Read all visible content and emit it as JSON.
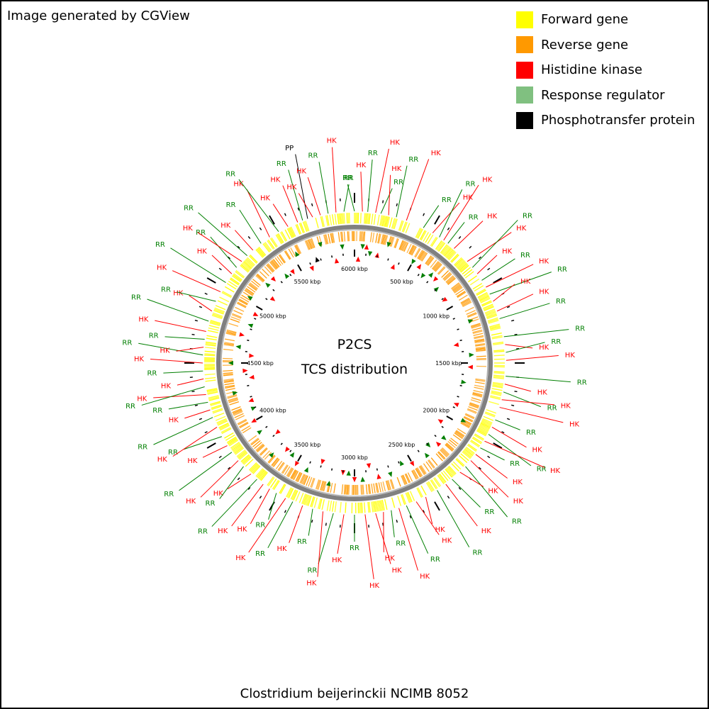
{
  "credit": "Image generated by CGView",
  "organism": "Clostridium beijerinckii NCIMB 8052",
  "center_title": [
    "P2CS",
    "TCS distribution"
  ],
  "legend": [
    {
      "label": "Forward gene",
      "color": "#ffff00"
    },
    {
      "label": "Reverse gene",
      "color": "#ff9900"
    },
    {
      "label": "Histidine kinase",
      "color": "#ff0000"
    },
    {
      "label": "Response regulator",
      "color": "#80c080"
    },
    {
      "label": "Phosphotransfer protein",
      "color": "#000000"
    }
  ],
  "genome_kbp": 6000,
  "ruler_labels": [
    "500 kbp",
    "1000 kbp",
    "1500 kbp",
    "2000 kbp",
    "2500 kbp",
    "3000 kbp",
    "3500 kbp",
    "4000 kbp",
    "4500 kbp",
    "5000 kbp",
    "5500 kbp",
    "6000 kbp"
  ],
  "colors": {
    "forward": "#ffff00",
    "reverse": "#ff9900",
    "hk": "#ff0000",
    "rr": "#007f00",
    "rr_legend": "#80c080",
    "pp": "#000000",
    "backbone": "#808080"
  },
  "callouts": [
    {
      "deg": 0,
      "type": "RR"
    },
    {
      "deg": 3,
      "type": "HK"
    },
    {
      "deg": 5,
      "type": "RR"
    },
    {
      "deg": 8,
      "type": "HK"
    },
    {
      "deg": 10,
      "type": "RR"
    },
    {
      "deg": 13,
      "type": "HK"
    },
    {
      "deg": 16,
      "type": "RR"
    },
    {
      "deg": 20,
      "type": "HK"
    },
    {
      "deg": 27,
      "type": "RR"
    },
    {
      "deg": 31,
      "type": "HK"
    },
    {
      "deg": 34,
      "type": "RR"
    },
    {
      "deg": 36,
      "type": "HK"
    },
    {
      "deg": 38,
      "type": "RR"
    },
    {
      "deg": 41,
      "type": "HK"
    },
    {
      "deg": 48,
      "type": "HK"
    },
    {
      "deg": 51,
      "type": "RR"
    },
    {
      "deg": 54,
      "type": "HK"
    },
    {
      "deg": 57,
      "type": "RR"
    },
    {
      "deg": 60,
      "type": "HK"
    },
    {
      "deg": 63,
      "type": "RR"
    },
    {
      "deg": 66,
      "type": "HK"
    },
    {
      "deg": 70,
      "type": "HK"
    },
    {
      "deg": 73,
      "type": "RR"
    },
    {
      "deg": 80,
      "type": "RR"
    },
    {
      "deg": 83,
      "type": "HK"
    },
    {
      "deg": 86,
      "type": "RR"
    },
    {
      "deg": 89,
      "type": "HK"
    },
    {
      "deg": 95,
      "type": "RR"
    },
    {
      "deg": 98,
      "type": "HK"
    },
    {
      "deg": 101,
      "type": "RR"
    },
    {
      "deg": 104,
      "type": "HK"
    },
    {
      "deg": 107,
      "type": "HK"
    },
    {
      "deg": 112,
      "type": "RR"
    },
    {
      "deg": 115,
      "type": "HK"
    },
    {
      "deg": 118,
      "type": "RR"
    },
    {
      "deg": 121,
      "type": "HK"
    },
    {
      "deg": 124,
      "type": "RR"
    },
    {
      "deg": 127,
      "type": "HK"
    },
    {
      "deg": 130,
      "type": "HK"
    },
    {
      "deg": 133,
      "type": "RR"
    },
    {
      "deg": 136,
      "type": "HK"
    },
    {
      "deg": 140,
      "type": "RR"
    },
    {
      "deg": 143,
      "type": "HK"
    },
    {
      "deg": 147,
      "type": "RR"
    },
    {
      "deg": 152,
      "type": "HK"
    },
    {
      "deg": 156,
      "type": "HK"
    },
    {
      "deg": 160,
      "type": "RR"
    },
    {
      "deg": 163,
      "type": "HK"
    },
    {
      "deg": 166,
      "type": "RR"
    },
    {
      "deg": 169,
      "type": "HK"
    },
    {
      "deg": 172,
      "type": "HK"
    },
    {
      "deg": 176,
      "type": "HK"
    },
    {
      "deg": 180,
      "type": "RR"
    },
    {
      "deg": 184,
      "type": "HK"
    },
    {
      "deg": 188,
      "type": "RR"
    },
    {
      "deg": 192,
      "type": "HK"
    },
    {
      "deg": 196,
      "type": "RR"
    },
    {
      "deg": 200,
      "type": "HK"
    },
    {
      "deg": 204,
      "type": "RR"
    },
    {
      "deg": 207,
      "type": "HK"
    },
    {
      "deg": 211,
      "type": "RR"
    },
    {
      "deg": 214,
      "type": "HK"
    },
    {
      "deg": 217,
      "type": "HK"
    },
    {
      "deg": 220,
      "type": "RR"
    },
    {
      "deg": 223,
      "type": "HK"
    },
    {
      "deg": 227,
      "type": "RR"
    },
    {
      "deg": 230,
      "type": "HK"
    },
    {
      "deg": 234,
      "type": "RR"
    },
    {
      "deg": 237,
      "type": "HK"
    },
    {
      "deg": 241,
      "type": "RR"
    },
    {
      "deg": 245,
      "type": "HK"
    },
    {
      "deg": 249,
      "type": "RR"
    },
    {
      "deg": 252,
      "type": "HK"
    },
    {
      "deg": 255,
      "type": "RR"
    },
    {
      "deg": 258,
      "type": "HK"
    },
    {
      "deg": 261,
      "type": "RR"
    },
    {
      "deg": 264,
      "type": "HK"
    },
    {
      "deg": 267,
      "type": "RR"
    },
    {
      "deg": 270,
      "type": "HK"
    },
    {
      "deg": 273,
      "type": "RR"
    },
    {
      "deg": 276,
      "type": "HK"
    },
    {
      "deg": 279,
      "type": "RR"
    },
    {
      "deg": 282,
      "type": "HK"
    },
    {
      "deg": 286,
      "type": "RR"
    },
    {
      "deg": 290,
      "type": "HK"
    },
    {
      "deg": 294,
      "type": "RR"
    },
    {
      "deg": 298,
      "type": "HK"
    },
    {
      "deg": 302,
      "type": "RR"
    },
    {
      "deg": 306,
      "type": "HK"
    },
    {
      "deg": 309,
      "type": "RR"
    },
    {
      "deg": 312,
      "type": "HK"
    },
    {
      "deg": 315,
      "type": "RR"
    },
    {
      "deg": 318,
      "type": "HK"
    },
    {
      "deg": 322,
      "type": "RR"
    },
    {
      "deg": 326,
      "type": "HK"
    },
    {
      "deg": 330,
      "type": "RR"
    },
    {
      "deg": 334,
      "type": "HK"
    },
    {
      "deg": 338,
      "type": "HK"
    },
    {
      "deg": 340,
      "type": "RR"
    },
    {
      "deg": 342,
      "type": "PP"
    },
    {
      "deg": 344,
      "type": "HK"
    },
    {
      "deg": 347,
      "type": "HK"
    },
    {
      "deg": 350,
      "type": "RR"
    },
    {
      "deg": 353,
      "type": "HK"
    },
    {
      "deg": 356,
      "type": "RR"
    }
  ],
  "inner_markers": [
    {
      "deg": 2,
      "type": "HK"
    },
    {
      "deg": 4,
      "type": "RR"
    },
    {
      "deg": 6,
      "type": "HK"
    },
    {
      "deg": 8,
      "type": "RR"
    },
    {
      "deg": 12,
      "type": "HK"
    },
    {
      "deg": 16,
      "type": "RR"
    },
    {
      "deg": 22,
      "type": "HK"
    },
    {
      "deg": 30,
      "type": "RR"
    },
    {
      "deg": 34,
      "type": "HK"
    },
    {
      "deg": 38,
      "type": "RR"
    },
    {
      "deg": 41,
      "type": "RR"
    },
    {
      "deg": 44,
      "type": "HK"
    },
    {
      "deg": 48,
      "type": "RR"
    },
    {
      "deg": 55,
      "type": "HK"
    },
    {
      "deg": 70,
      "type": "RR"
    },
    {
      "deg": 80,
      "type": "HK"
    },
    {
      "deg": 86,
      "type": "RR"
    },
    {
      "deg": 92,
      "type": "HK"
    },
    {
      "deg": 100,
      "type": "RR"
    },
    {
      "deg": 112,
      "type": "HK"
    },
    {
      "deg": 118,
      "type": "RR"
    },
    {
      "deg": 124,
      "type": "HK"
    },
    {
      "deg": 130,
      "type": "RR"
    },
    {
      "deg": 134,
      "type": "HK"
    },
    {
      "deg": 138,
      "type": "RR"
    },
    {
      "deg": 142,
      "type": "RR"
    },
    {
      "deg": 150,
      "type": "HK"
    },
    {
      "deg": 155,
      "type": "RR"
    },
    {
      "deg": 162,
      "type": "RR"
    },
    {
      "deg": 168,
      "type": "HK"
    },
    {
      "deg": 172,
      "type": "HK"
    },
    {
      "deg": 176,
      "type": "RR"
    },
    {
      "deg": 180,
      "type": "HK"
    },
    {
      "deg": 183,
      "type": "RR"
    },
    {
      "deg": 186,
      "type": "HK"
    },
    {
      "deg": 192,
      "type": "RR"
    },
    {
      "deg": 198,
      "type": "HK"
    },
    {
      "deg": 204,
      "type": "RR"
    },
    {
      "deg": 210,
      "type": "HK"
    },
    {
      "deg": 214,
      "type": "RR"
    },
    {
      "deg": 218,
      "type": "HK"
    },
    {
      "deg": 222,
      "type": "RR"
    },
    {
      "deg": 228,
      "type": "HK"
    },
    {
      "deg": 234,
      "type": "RR"
    },
    {
      "deg": 240,
      "type": "HK"
    },
    {
      "deg": 246,
      "type": "RR"
    },
    {
      "deg": 250,
      "type": "HK"
    },
    {
      "deg": 256,
      "type": "RR"
    },
    {
      "deg": 262,
      "type": "HK"
    },
    {
      "deg": 266,
      "type": "HK"
    },
    {
      "deg": 270,
      "type": "RR"
    },
    {
      "deg": 274,
      "type": "HK"
    },
    {
      "deg": 278,
      "type": "RR"
    },
    {
      "deg": 284,
      "type": "HK"
    },
    {
      "deg": 290,
      "type": "RR"
    },
    {
      "deg": 296,
      "type": "HK"
    },
    {
      "deg": 302,
      "type": "RR"
    },
    {
      "deg": 308,
      "type": "HK"
    },
    {
      "deg": 312,
      "type": "RR"
    },
    {
      "deg": 316,
      "type": "HK"
    },
    {
      "deg": 322,
      "type": "RR"
    },
    {
      "deg": 326,
      "type": "HK"
    },
    {
      "deg": 332,
      "type": "RR"
    },
    {
      "deg": 336,
      "type": "HK"
    },
    {
      "deg": 340,
      "type": "PP"
    },
    {
      "deg": 344,
      "type": "RR"
    },
    {
      "deg": 350,
      "type": "HK"
    },
    {
      "deg": 354,
      "type": "RR"
    }
  ]
}
